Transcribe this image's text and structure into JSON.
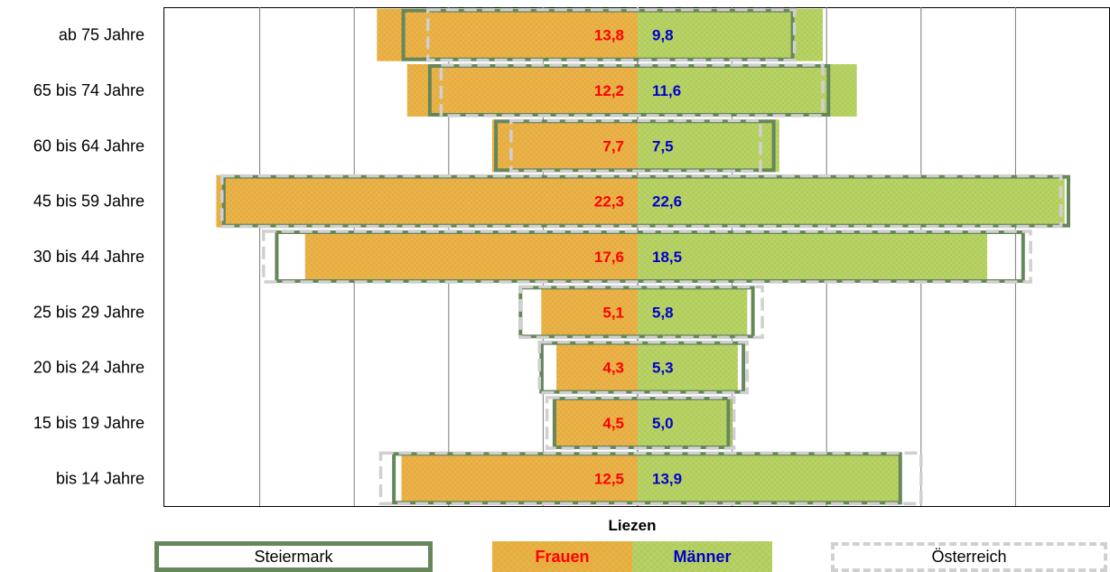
{
  "chart_data": {
    "type": "bar",
    "title": "Liezen",
    "categories": [
      "ab 75 Jahre",
      "65 bis 74 Jahre",
      "60 bis 64 Jahre",
      "45 bis 59 Jahre",
      "30 bis 44 Jahre",
      "25 bis 29 Jahre",
      "20 bis 24 Jahre",
      "15 bis 19 Jahre",
      "bis 14 Jahre"
    ],
    "series": [
      {
        "name": "Frauen",
        "values": [
          13.8,
          12.2,
          7.7,
          22.3,
          17.6,
          5.1,
          4.3,
          4.5,
          12.5
        ],
        "labels": [
          "13,8",
          "12,2",
          "7,7",
          "22,3",
          "17,6",
          "5,1",
          "4,3",
          "4,5",
          "12,5"
        ],
        "color": "#f0a63a"
      },
      {
        "name": "Männer",
        "values": [
          9.8,
          11.6,
          7.5,
          22.6,
          18.5,
          5.8,
          5.3,
          5.0,
          13.9
        ],
        "labels": [
          "9,8",
          "11,6",
          "7,5",
          "22,6",
          "18,5",
          "5,8",
          "5,3",
          "5,0",
          "13,9"
        ],
        "color": "#a6d05a"
      },
      {
        "name": "Steiermark",
        "frauen": [
          12.4,
          11.0,
          7.5,
          21.9,
          19.1,
          6.2,
          5.1,
          4.4,
          12.9
        ],
        "maenner": [
          8.2,
          10.1,
          7.2,
          22.8,
          20.4,
          6.1,
          5.6,
          4.8,
          13.9
        ],
        "color": "#66875a"
      },
      {
        "name": "Österreich",
        "frauen": [
          11.1,
          10.4,
          6.7,
          22.0,
          19.8,
          6.2,
          5.2,
          4.8,
          13.6
        ],
        "maenner": [
          8.3,
          9.8,
          6.5,
          22.4,
          20.8,
          6.6,
          5.8,
          5.1,
          15.0
        ],
        "color": "#d0d0d0"
      }
    ],
    "xlim": [
      -25,
      25
    ],
    "grid": true
  },
  "legend": {
    "region_title": "Liezen",
    "steiermark_label": "Steiermark",
    "frauen_label": "Frauen",
    "maenner_label": "Männer",
    "oesterreich_label": "Österreich"
  }
}
